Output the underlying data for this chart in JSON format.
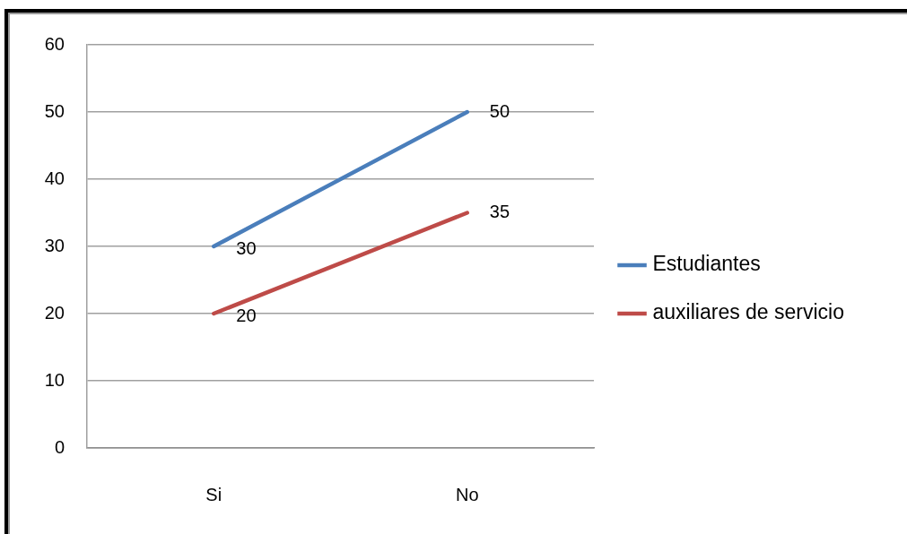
{
  "chart_data": {
    "type": "line",
    "categories": [
      "Si",
      "No"
    ],
    "series": [
      {
        "name": "Estudiantes",
        "color": "#4a7ebb",
        "values": [
          30,
          50
        ]
      },
      {
        "name": "auxiliares de servicio",
        "color": "#be4b48",
        "values": [
          20,
          35
        ]
      }
    ],
    "ylim": [
      0,
      60
    ],
    "yticks": [
      0,
      10,
      20,
      30,
      40,
      50,
      60
    ],
    "grid": "y",
    "legend": "right",
    "data_labels": true,
    "marker": "none",
    "line_style": "solid"
  }
}
